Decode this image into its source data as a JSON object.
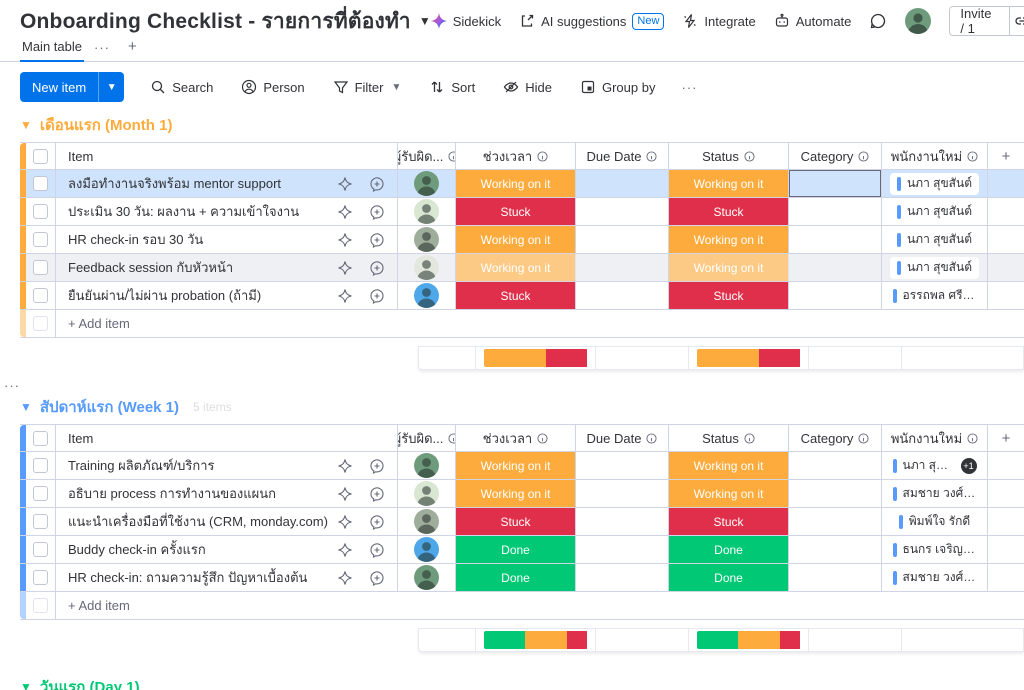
{
  "accent": {
    "primary_blue": "#0073ea",
    "employee_bar": "#579bfc"
  },
  "status_colors": {
    "Working on it": "#fdab3d",
    "Stuck": "#df2f4a",
    "Done": "#00c875"
  },
  "header": {
    "title": "Onboarding Checklist - รายการที่ต้องทำ",
    "actions": {
      "sidekick": "Sidekick",
      "ai_suggestions": "AI suggestions",
      "new_badge": "New",
      "integrate": "Integrate",
      "automate": "Automate",
      "invite": "Invite / 1"
    }
  },
  "tabs": {
    "main": "Main table",
    "more": "···",
    "add": "+"
  },
  "toolbar": {
    "new_item": "New item",
    "search": "Search",
    "person": "Person",
    "filter": "Filter",
    "sort": "Sort",
    "hide": "Hide",
    "group_by": "Group by",
    "more": "···"
  },
  "columns": {
    "item": "Item",
    "person": "ผู้รับผิด...",
    "timeline": "ช่วงเวลา",
    "due_date": "Due Date",
    "status": "Status",
    "category": "Category",
    "employee": "พนักงานใหม่",
    "add": "+"
  },
  "add_item_label": "+ Add item",
  "page_dots": "···",
  "groups": [
    {
      "title": "เดือนแรก (Month 1)",
      "color": "#fdab3d",
      "items_note": "",
      "rows": [
        {
          "name": "ลงมือทำงานจริงพร้อม mentor support",
          "timeline": "Working on it",
          "status": "Working on it",
          "employee": "นภา สุขสันต์",
          "avatar": "#6f9b7d",
          "state": "selected",
          "focused_cell": "category"
        },
        {
          "name": "ประเมิน 30 วัน: ผลงาน + ความเข้าใจงาน",
          "timeline": "Stuck",
          "status": "Stuck",
          "employee": "นภา สุขสันต์",
          "avatar": "#d8e6d2"
        },
        {
          "name": "HR check-in รอบ 30 วัน",
          "timeline": "Working on it",
          "status": "Working on it",
          "employee": "นภา สุขสันต์",
          "avatar": "#9fae9b"
        },
        {
          "name": "Feedback session กับหัวหน้า",
          "timeline": "Working on it",
          "status": "Working on it",
          "employee": "นภา สุขสันต์",
          "avatar": "#e3e8df",
          "state": "hover-state"
        },
        {
          "name": "ยืนยันผ่าน/ไม่ผ่าน probation (ถ้ามี)",
          "timeline": "Stuck",
          "status": "Stuck",
          "employee": "อรรถพล ศรีสุข",
          "avatar": "#4da7e8"
        }
      ],
      "summary": {
        "timeline": [
          {
            "color": "#fdab3d",
            "pct": 60
          },
          {
            "color": "#df2f4a",
            "pct": 40
          }
        ],
        "status": [
          {
            "color": "#fdab3d",
            "pct": 60
          },
          {
            "color": "#df2f4a",
            "pct": 40
          }
        ]
      }
    },
    {
      "title": "สัปดาห์แรก (Week 1)",
      "color": "#579bfc",
      "items_note": "5 items",
      "rows": [
        {
          "name": "Training ผลิตภัณฑ์/บริการ",
          "timeline": "Working on it",
          "status": "Working on it",
          "employee": "นภา สุขสันต์",
          "extra": "+1",
          "avatar": "#6f9b7d"
        },
        {
          "name": "อธิบาย process การทำงานของแผนก",
          "timeline": "Working on it",
          "status": "Working on it",
          "employee": "สมชาย วงศ์สวัสดิ์",
          "avatar": "#d8e6d2"
        },
        {
          "name": "แนะนำเครื่องมือที่ใช้งาน (CRM, monday.com)",
          "timeline": "Stuck",
          "status": "Stuck",
          "employee": "พิมพ์ใจ รักดี",
          "avatar": "#9fae9b"
        },
        {
          "name": "Buddy check-in ครั้งแรก",
          "timeline": "Done",
          "status": "Done",
          "employee": "ธนกร เจริญสุข",
          "avatar": "#4da7e8"
        },
        {
          "name": "HR check-in: ถามความรู้สึก ปัญหาเบื้องต้น",
          "timeline": "Done",
          "status": "Done",
          "employee": "สมชาย วงศ์สวัสดิ์",
          "avatar": "#6f9b7d"
        }
      ],
      "summary": {
        "timeline": [
          {
            "color": "#00c875",
            "pct": 40
          },
          {
            "color": "#fdab3d",
            "pct": 40
          },
          {
            "color": "#df2f4a",
            "pct": 20
          }
        ],
        "status": [
          {
            "color": "#00c875",
            "pct": 40
          },
          {
            "color": "#fdab3d",
            "pct": 40
          },
          {
            "color": "#df2f4a",
            "pct": 20
          }
        ]
      }
    },
    {
      "title": "วันแรก (Day 1)",
      "color": "#00c875",
      "items_note": "",
      "rows": [],
      "summary": null
    }
  ]
}
